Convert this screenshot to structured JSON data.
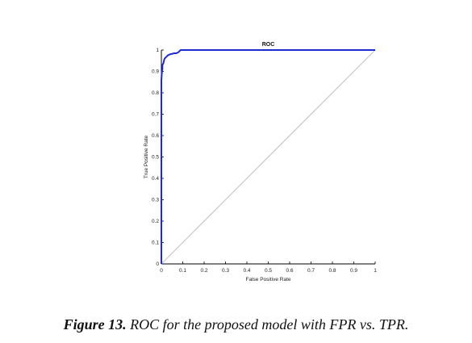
{
  "chart_data": {
    "type": "line",
    "title": "ROC",
    "xlabel": "False Positive Rate",
    "ylabel": "True Positive Rate",
    "xlim": [
      0,
      1
    ],
    "ylim": [
      0,
      1
    ],
    "xticks": [
      "0",
      "0.1",
      "0.2",
      "0.3",
      "0.4",
      "0.5",
      "0.6",
      "0.7",
      "0.8",
      "0.9",
      "1"
    ],
    "yticks": [
      "0",
      "0.1",
      "0.2",
      "0.3",
      "0.4",
      "0.5",
      "0.6",
      "0.7",
      "0.8",
      "0.9",
      "1"
    ],
    "grid": false,
    "colors": {
      "roc": "#1f2bd1",
      "diagonal": "#c8c8c8",
      "axis": "#000000"
    },
    "series": [
      {
        "x": [
          0,
          0,
          0.002,
          0.003,
          0.005,
          0.005,
          0.01,
          0.012,
          0.015,
          0.02,
          0.025,
          0.03,
          0.04,
          0.05,
          0.06,
          0.07,
          0.08,
          0.085,
          0.09,
          0.1,
          0.2,
          0.4,
          0.6,
          0.8,
          1.0
        ],
        "y": [
          0,
          0.86,
          0.89,
          0.9,
          0.91,
          0.93,
          0.94,
          0.95,
          0.96,
          0.965,
          0.97,
          0.975,
          0.98,
          0.982,
          0.985,
          0.985,
          0.99,
          0.995,
          1,
          1,
          1,
          1,
          1,
          1,
          1
        ]
      },
      {
        "x": [
          0,
          1
        ],
        "y": [
          0,
          1
        ]
      }
    ]
  },
  "caption": {
    "label": "Figure 13.",
    "text": " ROC for the proposed model with FPR vs. TPR."
  }
}
